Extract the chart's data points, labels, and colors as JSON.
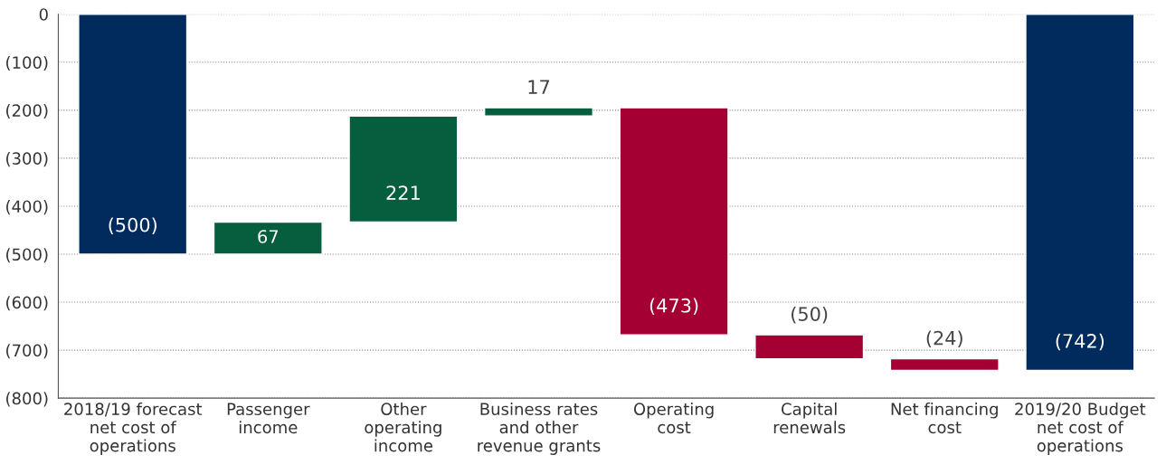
{
  "chart_data": {
    "type": "bar",
    "categories": [
      "2018/19 forecast\nnet cost of\noperations",
      "Passenger\nincome",
      "Other\noperating\nincome",
      "Business rates\nand other\nrevenue grants",
      "Operating\ncost",
      "Capital\nrenewals",
      "Net financing\ncost",
      "2019/20 Budget\nnet cost of\noperations"
    ],
    "values": [
      -500,
      67,
      221,
      17,
      -473,
      -50,
      -24,
      -742
    ],
    "base": [
      0,
      -500,
      -433,
      -212,
      -195,
      -668,
      -718,
      0
    ],
    "colors": [
      "#002b5c",
      "#075e3f",
      "#075e3f",
      "#075e3f",
      "#a50034",
      "#a50034",
      "#a50034",
      "#002b5c"
    ],
    "value_labels": [
      "(500)",
      "67",
      "221",
      "17",
      "(473)",
      "(50)",
      "(24)",
      "(742)"
    ],
    "ylim": [
      -800,
      0
    ],
    "yticks": [
      0,
      {
        "value": -100,
        "label": "(100)"
      },
      {
        "value": -200,
        "label": "(200)"
      },
      {
        "value": -300,
        "label": "(300)"
      },
      {
        "value": -400,
        "label": "(400)"
      },
      {
        "value": -500,
        "label": "(500)"
      },
      {
        "value": -600,
        "label": "(600)"
      },
      {
        "value": -700,
        "label": "(700)"
      },
      {
        "value": -800,
        "label": "(800)"
      }
    ],
    "grid": "y"
  }
}
